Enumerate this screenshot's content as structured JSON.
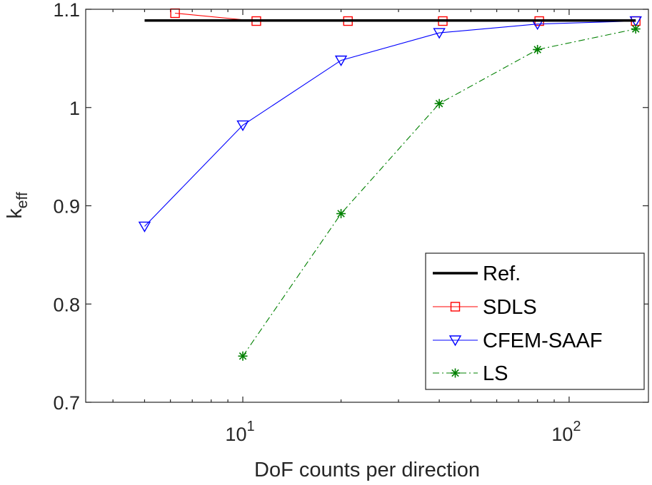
{
  "chart_data": {
    "type": "line",
    "xscale": "log",
    "xlim": [
      3.3,
      175
    ],
    "ylim": [
      0.7,
      1.1
    ],
    "xlabel": "DoF counts per direction",
    "ylabel": {
      "base": "k",
      "sub": "eff"
    },
    "xticks": [
      {
        "value": 10,
        "base": "10",
        "exp": "1"
      },
      {
        "value": 100,
        "base": "10",
        "exp": "2"
      }
    ],
    "yticks": [
      {
        "value": 0.7,
        "label": "0.7"
      },
      {
        "value": 0.8,
        "label": "0.8"
      },
      {
        "value": 0.9,
        "label": "0.9"
      },
      {
        "value": 1.0,
        "label": "1"
      },
      {
        "value": 1.1,
        "label": "1.1"
      }
    ],
    "legend_position": "bottom-right",
    "series": [
      {
        "name": "Ref.",
        "color": "#000000",
        "marker": "none",
        "line": "solid-thick",
        "x": [
          5,
          160
        ],
        "y": [
          1.0886,
          1.0886
        ]
      },
      {
        "name": "SDLS",
        "color": "#ff0000",
        "marker": "square",
        "line": "solid",
        "x": [
          6.2,
          11,
          21,
          41,
          81,
          160
        ],
        "y": [
          1.096,
          1.088,
          1.088,
          1.088,
          1.088,
          1.088
        ]
      },
      {
        "name": "CFEM-SAAF",
        "color": "#0000ff",
        "marker": "triangle-down",
        "line": "solid",
        "x": [
          5,
          10,
          20,
          40,
          80,
          160
        ],
        "y": [
          0.879,
          0.982,
          1.048,
          1.076,
          1.085,
          1.088
        ]
      },
      {
        "name": "LS",
        "color": "#008000",
        "marker": "asterisk",
        "line": "dashdot",
        "x": [
          10,
          20,
          40,
          80,
          160
        ],
        "y": [
          0.747,
          0.892,
          1.004,
          1.059,
          1.08
        ]
      }
    ]
  }
}
